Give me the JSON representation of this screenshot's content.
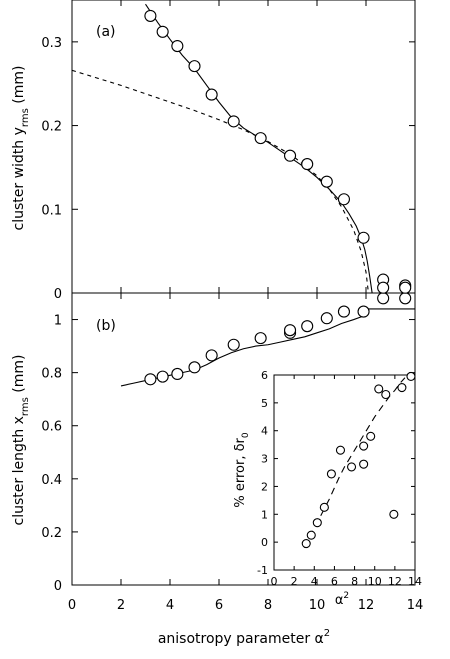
{
  "chart_data": [
    {
      "panel_label": "(a)",
      "type": "scatter",
      "ylabel": "cluster width y",
      "ylabel_sub": "rms",
      "ylabel_unit": " (mm)",
      "xlim": [
        0,
        14
      ],
      "ylim": [
        0,
        0.35
      ],
      "xticks": [
        0,
        2,
        4,
        6,
        8,
        10,
        12,
        14
      ],
      "yticks": [
        0,
        0.1,
        0.2,
        0.3
      ],
      "ytick_labels": [
        "0",
        "0.1",
        "0.2",
        "0.3"
      ],
      "points": {
        "x": [
          3.2,
          3.7,
          4.3,
          5.0,
          5.7,
          6.6,
          7.7,
          8.9,
          9.6,
          10.4,
          11.1,
          11.9,
          12.7,
          13.6
        ],
        "y": [
          0.331,
          0.312,
          0.295,
          0.271,
          0.237,
          0.205,
          0.185,
          0.164,
          0.154,
          0.133,
          0.112,
          0.066,
          0.016,
          0.009
        ]
      },
      "series": [
        {
          "style": "solid",
          "x": [
            3.0,
            3.5,
            4.0,
            4.5,
            5.0,
            5.5,
            6.0,
            6.5,
            7.0,
            7.5,
            8.0,
            8.5,
            9.0,
            9.5,
            10.0,
            10.5,
            11.0,
            11.3,
            11.6,
            11.8,
            11.95,
            12.05,
            12.15,
            12.25
          ],
          "y": [
            0.345,
            0.323,
            0.303,
            0.284,
            0.268,
            0.248,
            0.228,
            0.21,
            0.197,
            0.188,
            0.18,
            0.17,
            0.16,
            0.15,
            0.138,
            0.124,
            0.108,
            0.095,
            0.08,
            0.066,
            0.052,
            0.038,
            0.02,
            0.0
          ]
        },
        {
          "style": "dashed",
          "x": [
            0,
            1,
            2,
            3,
            4,
            5,
            6,
            7,
            8,
            9,
            10,
            10.5,
            11,
            11.5,
            11.8,
            12.0,
            12.1
          ],
          "y": [
            0.266,
            0.257,
            0.248,
            0.238,
            0.228,
            0.218,
            0.207,
            0.195,
            0.181,
            0.164,
            0.14,
            0.124,
            0.103,
            0.075,
            0.05,
            0.025,
            0.0
          ]
        }
      ]
    },
    {
      "panel_label": "(b)",
      "type": "scatter",
      "ylabel": "cluster length x",
      "ylabel_sub": "rms",
      "ylabel_unit": " (mm)",
      "xlabel": "anisotropy parameter α",
      "xlabel_sup": "2",
      "xlim": [
        0,
        14
      ],
      "ylim": [
        0,
        1.1
      ],
      "xticks": [
        0,
        2,
        4,
        6,
        8,
        10,
        12,
        14
      ],
      "yticks": [
        0,
        0.2,
        0.4,
        0.6,
        0.8,
        1
      ],
      "ytick_labels": [
        "0",
        "0.2",
        "0.4",
        "0.6",
        "0.8",
        "1"
      ],
      "points": {
        "x": [
          3.2,
          3.7,
          4.3,
          5.0,
          5.7,
          6.6,
          7.7,
          8.9,
          8.9,
          9.6,
          10.4,
          11.1,
          11.9,
          12.7,
          12.7,
          13.6,
          13.6
        ],
        "y": [
          0.775,
          0.785,
          0.795,
          0.82,
          0.865,
          0.905,
          0.93,
          0.95,
          0.96,
          0.975,
          1.005,
          1.03,
          1.03,
          1.08,
          1.12,
          1.08,
          1.12
        ]
      },
      "series": [
        {
          "style": "solid",
          "x": [
            2.0,
            2.5,
            3.0,
            3.5,
            4.0,
            4.5,
            5.0,
            5.5,
            6.0,
            6.5,
            7.0,
            7.5,
            8.0,
            8.5,
            9.0,
            9.5,
            10.0,
            10.5,
            11.0,
            11.5,
            11.8,
            12.0,
            12.1,
            14.0
          ],
          "y": [
            0.75,
            0.76,
            0.77,
            0.78,
            0.79,
            0.8,
            0.81,
            0.83,
            0.855,
            0.875,
            0.89,
            0.9,
            0.905,
            0.915,
            0.925,
            0.935,
            0.95,
            0.965,
            0.985,
            1.0,
            1.01,
            1.02,
            1.04,
            1.04
          ]
        }
      ]
    },
    {
      "type": "scatter",
      "inset": true,
      "ylabel": "% error, δr",
      "ylabel_sub": "0",
      "xlabel": "α",
      "xlabel_sup": "2",
      "xlim": [
        0,
        14
      ],
      "ylim": [
        -1,
        6
      ],
      "xticks": [
        0,
        2,
        4,
        6,
        8,
        10,
        12,
        14
      ],
      "yticks": [
        -1,
        0,
        1,
        2,
        3,
        4,
        5,
        6
      ],
      "points": {
        "x": [
          3.2,
          3.7,
          4.3,
          5.0,
          5.7,
          6.6,
          7.7,
          8.9,
          8.9,
          9.6,
          10.4,
          11.1,
          11.9,
          12.7,
          13.6
        ],
        "y": [
          -0.05,
          0.25,
          0.7,
          1.25,
          2.45,
          3.3,
          2.7,
          2.8,
          3.45,
          3.8,
          5.5,
          5.3,
          1.0,
          5.55,
          5.95
        ]
      },
      "series": [
        {
          "style": "dashed",
          "x": [
            3.0,
            3.5,
            4.0,
            4.5,
            5.0,
            5.5,
            6.0,
            6.5,
            7.0,
            7.5,
            8.0,
            8.5,
            9.0,
            9.5,
            10.0,
            10.5,
            11.0,
            11.5,
            12.0,
            12.5,
            13.0
          ],
          "y": [
            -0.2,
            0.15,
            0.5,
            0.85,
            1.2,
            1.55,
            1.95,
            2.35,
            2.7,
            3.0,
            3.3,
            3.6,
            3.9,
            4.2,
            4.5,
            4.75,
            5.0,
            5.25,
            5.45,
            5.7,
            5.9
          ]
        }
      ]
    }
  ]
}
